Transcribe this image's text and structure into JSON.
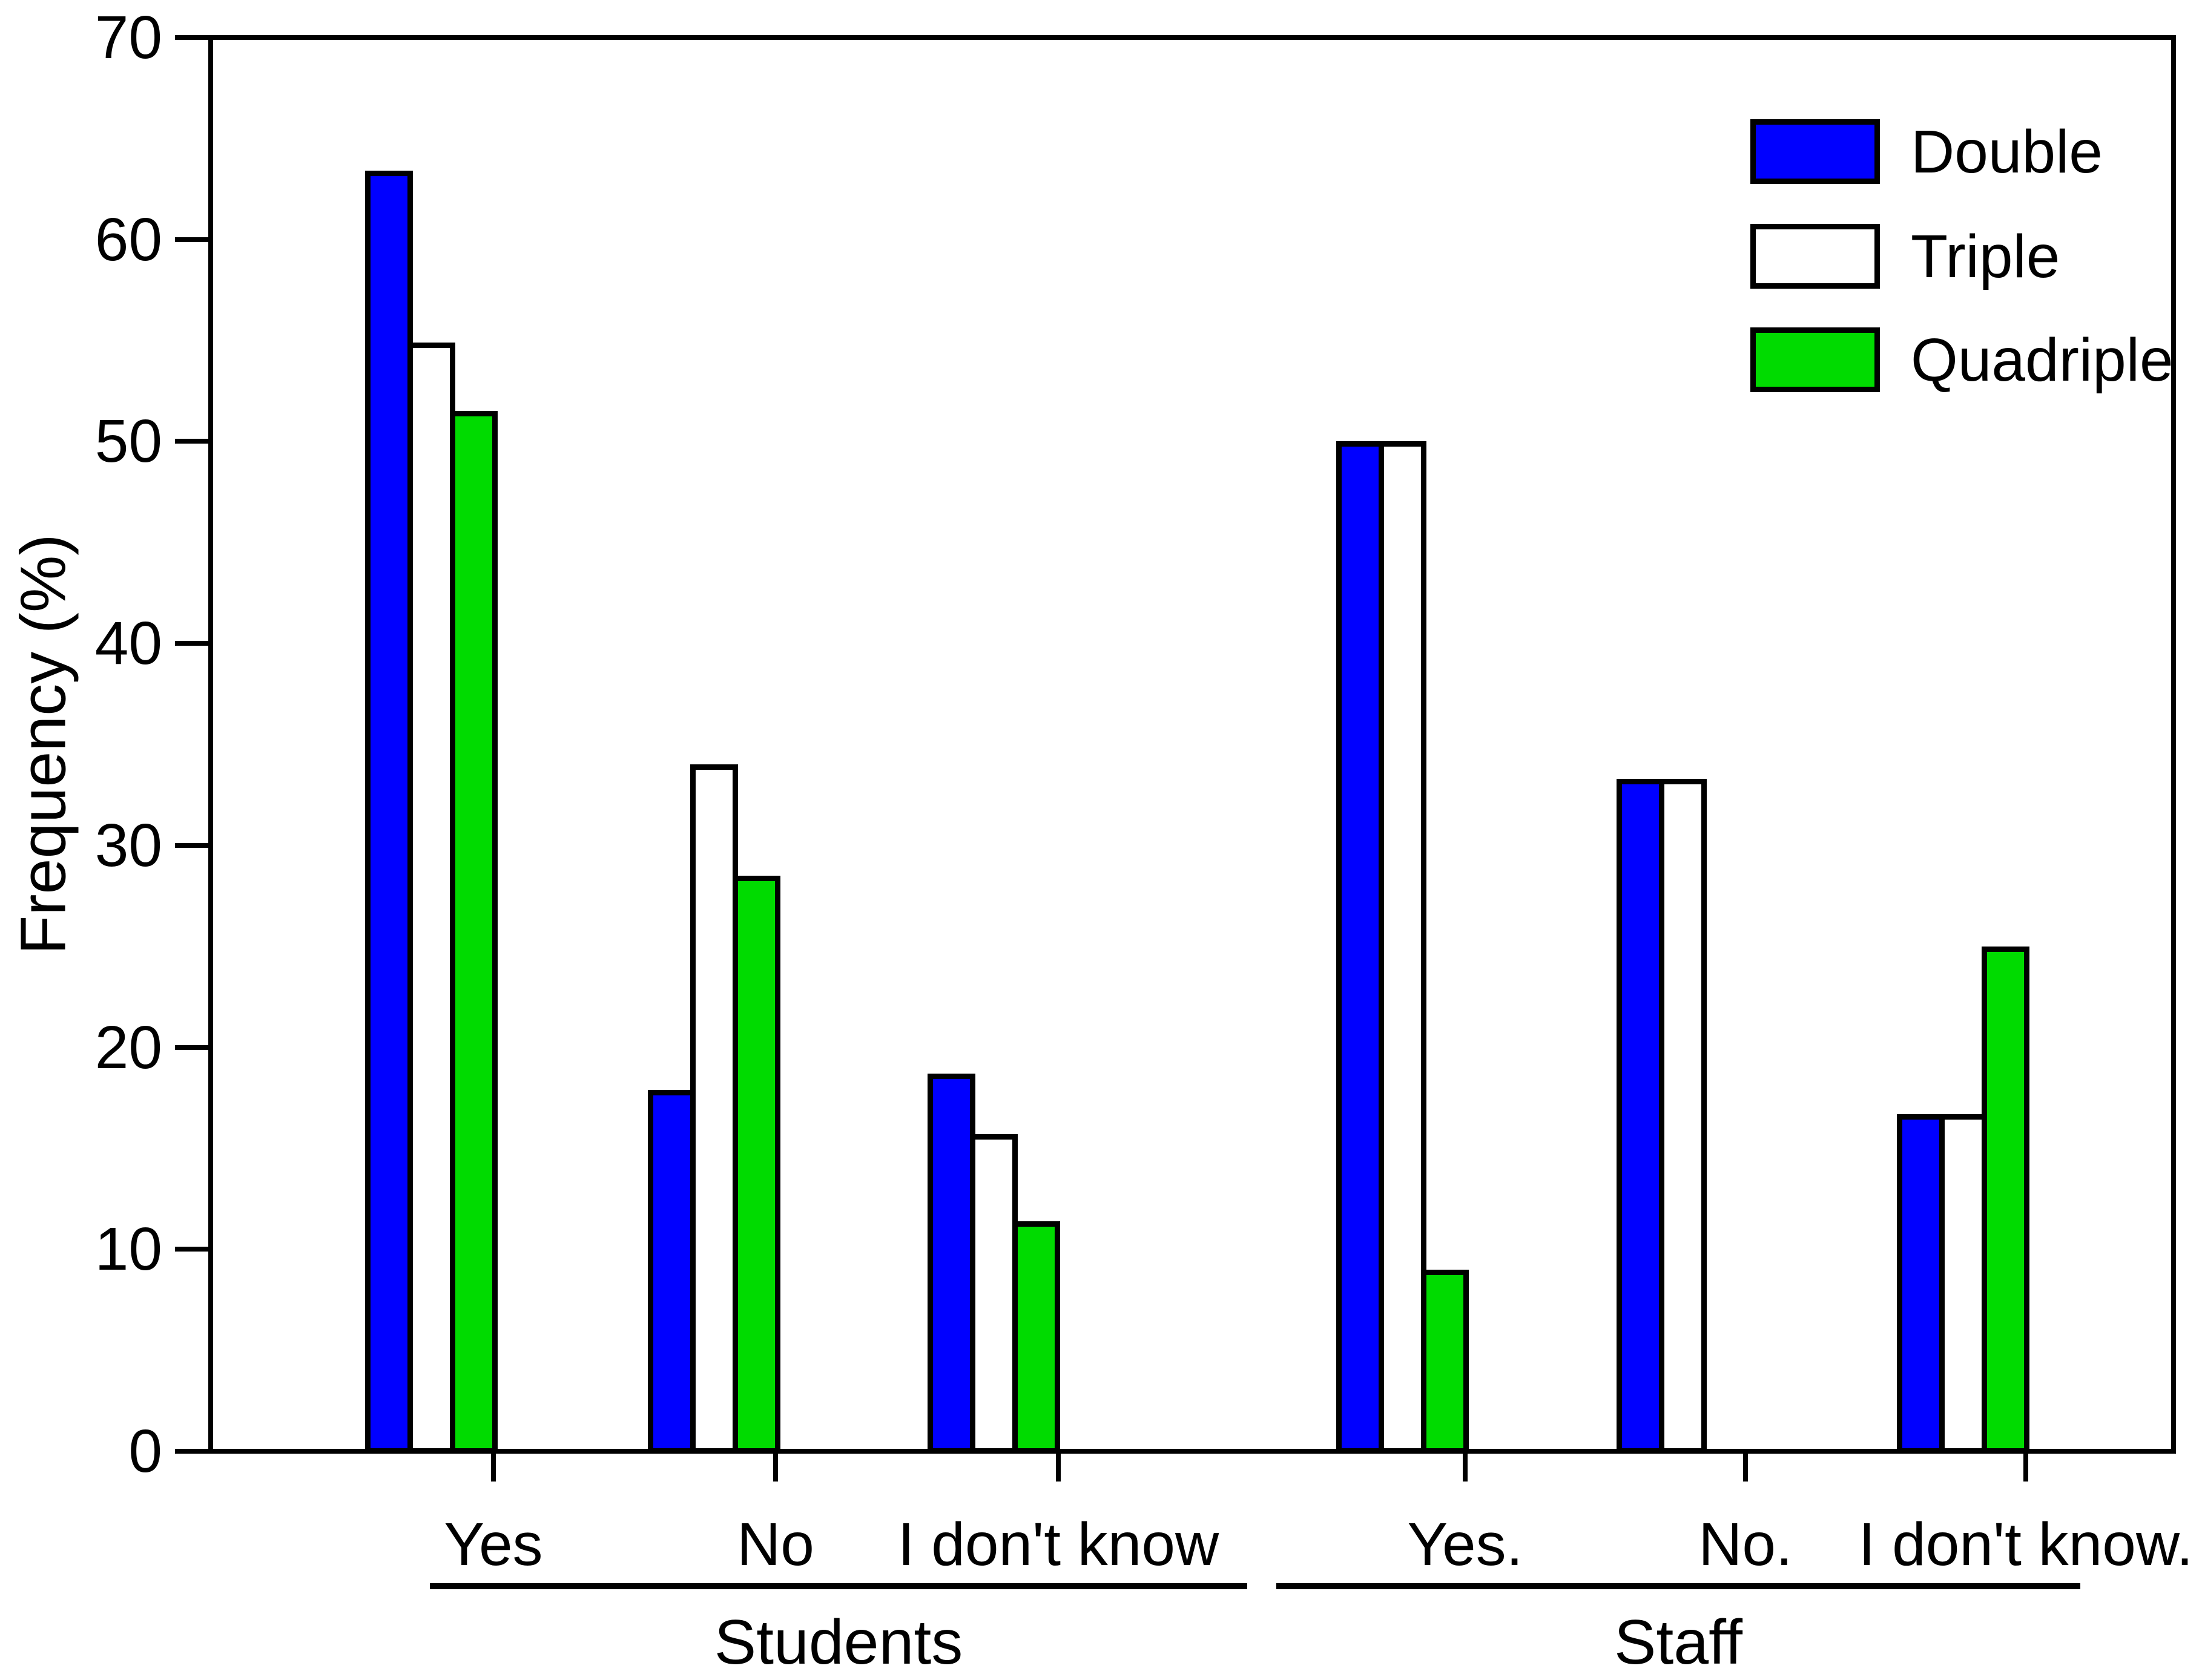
{
  "chart_data": {
    "type": "bar",
    "title": "",
    "xlabel": "",
    "ylabel": "Frequency (%)",
    "ylim": [
      0,
      70
    ],
    "ytick_step": 10,
    "yticks": [
      0,
      10,
      20,
      30,
      40,
      50,
      60,
      70
    ],
    "grid": false,
    "legend_position": "top-right",
    "categories": [
      "Yes",
      "No",
      "I don't know",
      "Yes.",
      "No.",
      "I don't know."
    ],
    "category_groups": [
      {
        "label": "Students",
        "categories": [
          "Yes",
          "No",
          "I don't know"
        ]
      },
      {
        "label": "Staff",
        "categories": [
          "Yes.",
          "No.",
          "I don't know."
        ]
      }
    ],
    "series": [
      {
        "name": "Double",
        "color": "#0000ff",
        "values": [
          63.4,
          17.9,
          18.7,
          50.0,
          33.3,
          16.7
        ]
      },
      {
        "name": "Triple",
        "color": "#ffffff",
        "values": [
          54.9,
          34.0,
          15.7,
          50.0,
          33.3,
          16.7
        ]
      },
      {
        "name": "Quadriple",
        "color": "#00db00",
        "values": [
          51.5,
          28.5,
          11.4,
          9.0,
          null,
          25.0
        ]
      }
    ],
    "bar_border_color": "#000000",
    "background_color": "#ffffff"
  }
}
